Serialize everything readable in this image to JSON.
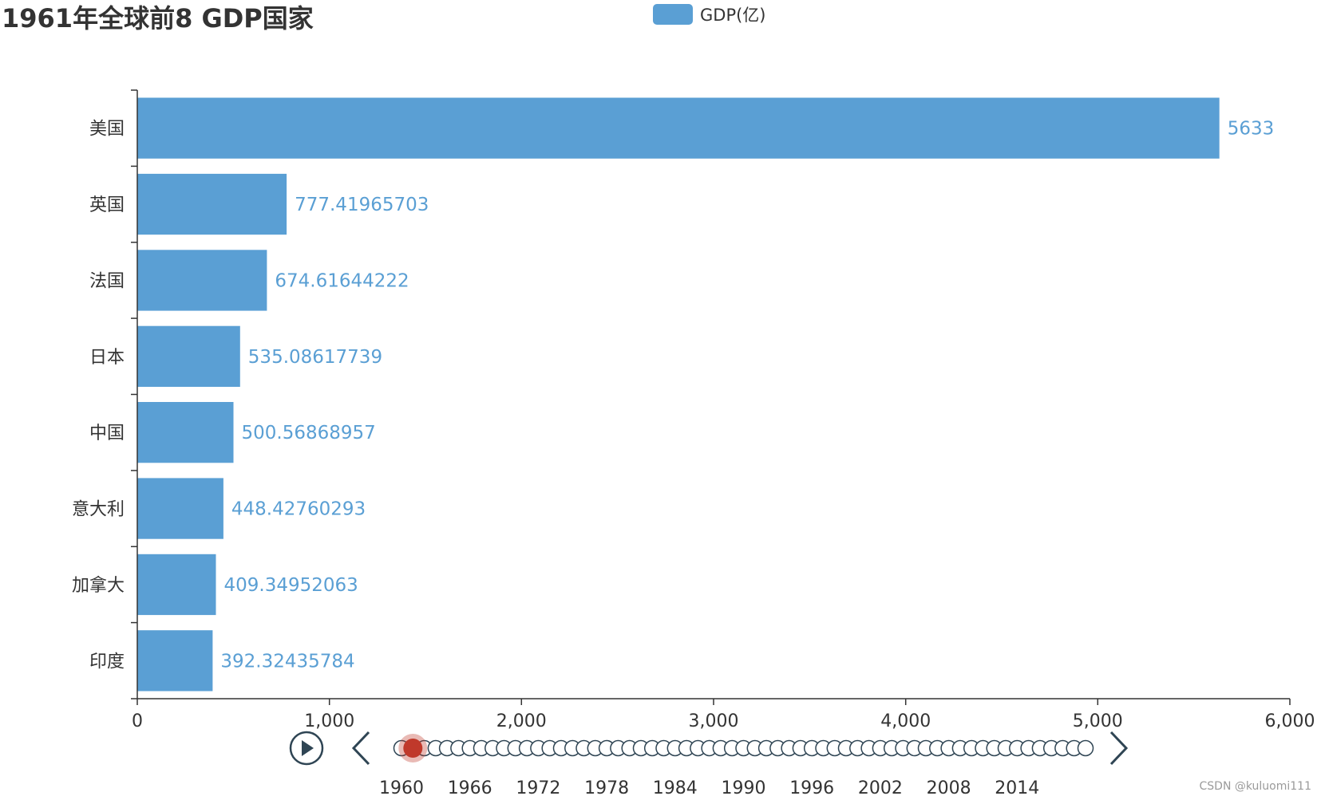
{
  "watermark": "CSDN @kuluomi111",
  "colors": {
    "bar": "#5a9fd4",
    "value_label": "#5a9fd4",
    "axis": "#333333",
    "timeline_active": "#c0392b",
    "timeline_dot_stroke": "#2f4554"
  },
  "icons": {
    "play": "play-icon",
    "prev": "chevron-left-icon",
    "next": "chevron-right-icon"
  },
  "chart_data": {
    "type": "bar",
    "orientation": "horizontal",
    "title": "1961年全球前8 GDP国家",
    "legend": [
      "GDP(亿)"
    ],
    "legend_position": "top-center",
    "categories": [
      "美国",
      "英国",
      "法国",
      "日本",
      "中国",
      "意大利",
      "加拿大",
      "印度"
    ],
    "series": [
      {
        "name": "GDP(亿)",
        "values": [
          5633,
          777.41965703,
          674.61644222,
          535.08617739,
          500.56868957,
          448.42760293,
          409.34952063,
          392.32435784
        ],
        "labels": [
          "5633",
          "777.41965703",
          "674.61644222",
          "535.08617739",
          "500.56868957",
          "448.42760293",
          "409.34952063",
          "392.32435784"
        ]
      }
    ],
    "xlim": [
      0,
      6000
    ],
    "x_ticks": [
      0,
      1000,
      2000,
      3000,
      4000,
      5000,
      6000
    ],
    "x_tick_labels": [
      "0",
      "1,000",
      "2,000",
      "3,000",
      "4,000",
      "5,000",
      "6,000"
    ],
    "grid": false,
    "timeline": {
      "start_year": 1960,
      "end_year": 2020,
      "current_year": 1961,
      "labels": [
        "1960",
        "1966",
        "1972",
        "1978",
        "1984",
        "1990",
        "1996",
        "2002",
        "2008",
        "2014"
      ]
    }
  }
}
